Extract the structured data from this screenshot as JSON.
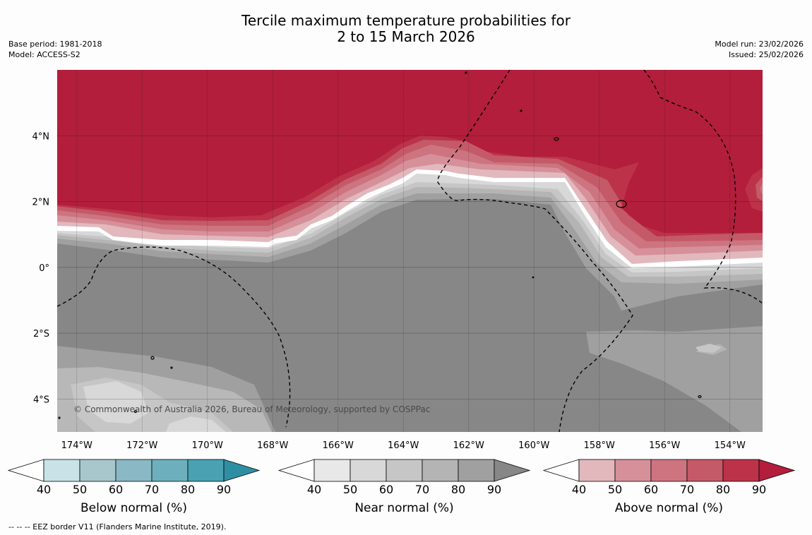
{
  "title": {
    "line1": "Tercile maximum temperature probabilities for",
    "line2": "2 to 15 March 2026"
  },
  "meta_left": {
    "base_period": "Base period: 1981-2018",
    "model": "Model: ACCESS-S2"
  },
  "meta_right": {
    "model_run": "Model run: 23/02/2026",
    "issued": "Issued: 25/02/2026"
  },
  "map": {
    "lon_range": [
      -174.6,
      -153.0
    ],
    "lat_range": [
      -5.0,
      6.0
    ],
    "lon_ticks": [
      {
        "value": -174,
        "label": "174°W"
      },
      {
        "value": -172,
        "label": "172°W"
      },
      {
        "value": -170,
        "label": "170°W"
      },
      {
        "value": -168,
        "label": "168°W"
      },
      {
        "value": -166,
        "label": "166°W"
      },
      {
        "value": -164,
        "label": "164°W"
      },
      {
        "value": -162,
        "label": "162°W"
      },
      {
        "value": -160,
        "label": "160°W"
      },
      {
        "value": -158,
        "label": "158°W"
      },
      {
        "value": -156,
        "label": "156°W"
      },
      {
        "value": -154,
        "label": "154°W"
      }
    ],
    "lat_ticks": [
      {
        "value": 4,
        "label": "4°N"
      },
      {
        "value": 2,
        "label": "2°N"
      },
      {
        "value": 0,
        "label": "0°"
      },
      {
        "value": -2,
        "label": "2°S"
      },
      {
        "value": -4,
        "label": "4°S"
      }
    ],
    "copyright": "© Commonwealth of Australia 2026, Bureau of Meteorology, supported by COSPPac",
    "colors": {
      "above": [
        "#e2b8bd",
        "#d6909a",
        "#cd7480",
        "#c45a68",
        "#bc3349",
        "#b21e3b"
      ],
      "near": [
        "#e8e8e8",
        "#d8d8d8",
        "#c6c6c6",
        "#b4b4b4",
        "#a0a0a0",
        "#878787"
      ],
      "below": [
        "#c8e2e8",
        "#a7c7cd",
        "#8ab8c5",
        "#6dafbd",
        "#4aa1b2",
        "#2e8fa3"
      ],
      "white_band": "#ffffff"
    }
  },
  "colorbars": [
    {
      "id": "below",
      "title": "Below normal (%)",
      "labels": [
        "40",
        "50",
        "60",
        "70",
        "80",
        "90"
      ],
      "colors": [
        "#c8e2e8",
        "#a7c7cd",
        "#8ab8c5",
        "#6dafbd",
        "#4aa1b2",
        "#2e8fa3"
      ]
    },
    {
      "id": "near",
      "title": "Near normal (%)",
      "labels": [
        "40",
        "50",
        "60",
        "70",
        "80",
        "90"
      ],
      "colors": [
        "#e8e8e8",
        "#d8d8d8",
        "#c6c6c6",
        "#b4b4b4",
        "#a0a0a0",
        "#878787"
      ]
    },
    {
      "id": "above",
      "title": "Above normal (%)",
      "labels": [
        "40",
        "50",
        "60",
        "70",
        "80",
        "90"
      ],
      "colors": [
        "#e2b8bd",
        "#d6909a",
        "#cd7480",
        "#c45a68",
        "#bc3349",
        "#b21e3b"
      ]
    }
  ],
  "footer": "--  --  -- EEZ border V11 (Flanders Marine Institute, 2019)."
}
